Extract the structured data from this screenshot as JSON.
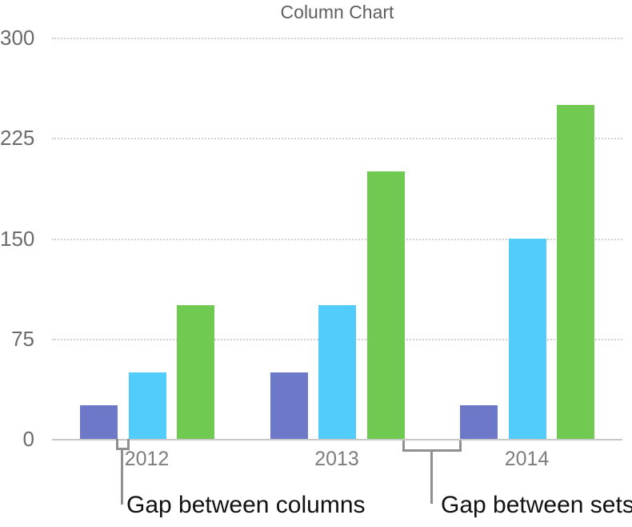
{
  "figure": {
    "background": "#ffffff"
  },
  "chart_data": {
    "type": "bar",
    "title": "Column Chart",
    "categories": [
      "2012",
      "2013",
      "2014"
    ],
    "series": [
      {
        "name": "purple-series",
        "color": "#6e78c8",
        "values": [
          25,
          50,
          25
        ]
      },
      {
        "name": "blue-series",
        "color": "#52ccfa",
        "values": [
          50,
          100,
          150
        ]
      },
      {
        "name": "green-series",
        "color": "#70c950",
        "values": [
          100,
          200,
          250
        ]
      }
    ],
    "xlabel": "",
    "ylabel": "",
    "ylim": [
      0,
      300
    ],
    "y_ticks": [
      300,
      225,
      150,
      75,
      0
    ],
    "grid": "horizontal-dotted",
    "legend_position": "none"
  },
  "axis_styles": {
    "title_color": "#5f5f5f",
    "tick_label_color": "#6b6b6b",
    "category_label_color": "#7d7d7d",
    "gridline_color": "#cfcfcf",
    "baseline_color": "#c8c8c8"
  },
  "annotations": {
    "gap_between_columns": "Gap between columns",
    "gap_between_sets": "Gap between sets",
    "bracket_color": "#909090",
    "text_color": "#111111"
  }
}
